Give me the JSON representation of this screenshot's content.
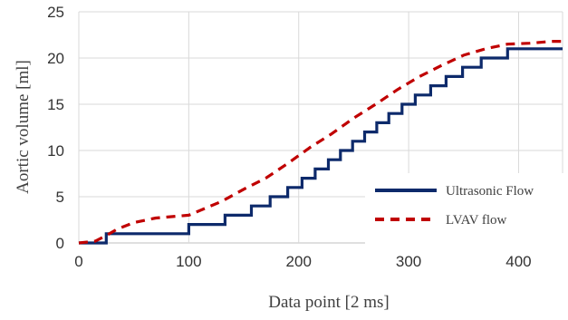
{
  "chart_data": {
    "type": "line",
    "xlabel": "Data point [2 ms]",
    "ylabel": "Aortic volume [ml]",
    "xlim": [
      0,
      440
    ],
    "ylim": [
      0,
      25
    ],
    "x_ticks": [
      0,
      100,
      200,
      300,
      400
    ],
    "y_ticks": [
      0,
      5,
      10,
      15,
      20,
      25
    ],
    "grid": true,
    "legend": "bottom-right",
    "series": [
      {
        "name": "Ultrasonic Flow",
        "color": "#0d2a6b",
        "style": "solid-step",
        "x": [
          0,
          25,
          25,
          100,
          100,
          133,
          133,
          157,
          157,
          174,
          174,
          190,
          190,
          203,
          203,
          215,
          215,
          227,
          227,
          238,
          238,
          249,
          249,
          260,
          260,
          271,
          271,
          282,
          282,
          294,
          294,
          306,
          306,
          320,
          320,
          334,
          334,
          349,
          349,
          366,
          366,
          390,
          390,
          430,
          430,
          440
        ],
        "values": [
          0,
          0,
          1,
          1,
          2,
          2,
          3,
          3,
          4,
          4,
          5,
          5,
          6,
          6,
          7,
          7,
          8,
          8,
          9,
          9,
          10,
          10,
          11,
          11,
          12,
          12,
          13,
          13,
          14,
          14,
          15,
          15,
          16,
          16,
          17,
          17,
          18,
          18,
          19,
          19,
          20,
          20,
          21,
          21,
          21,
          21
        ]
      },
      {
        "name": "LVAV flow",
        "color": "#c00000",
        "style": "dashed",
        "x": [
          0,
          15,
          25,
          35,
          50,
          70,
          90,
          100,
          110,
          130,
          150,
          170,
          190,
          210,
          230,
          250,
          270,
          290,
          310,
          330,
          350,
          370,
          390,
          410,
          430,
          440
        ],
        "values": [
          0,
          0.2,
          0.8,
          1.5,
          2.2,
          2.7,
          2.9,
          3.0,
          3.5,
          4.5,
          5.8,
          7.0,
          8.6,
          10.3,
          11.8,
          13.5,
          15.0,
          16.6,
          18.0,
          19.2,
          20.3,
          21.0,
          21.5,
          21.6,
          21.8,
          21.8
        ]
      }
    ]
  }
}
